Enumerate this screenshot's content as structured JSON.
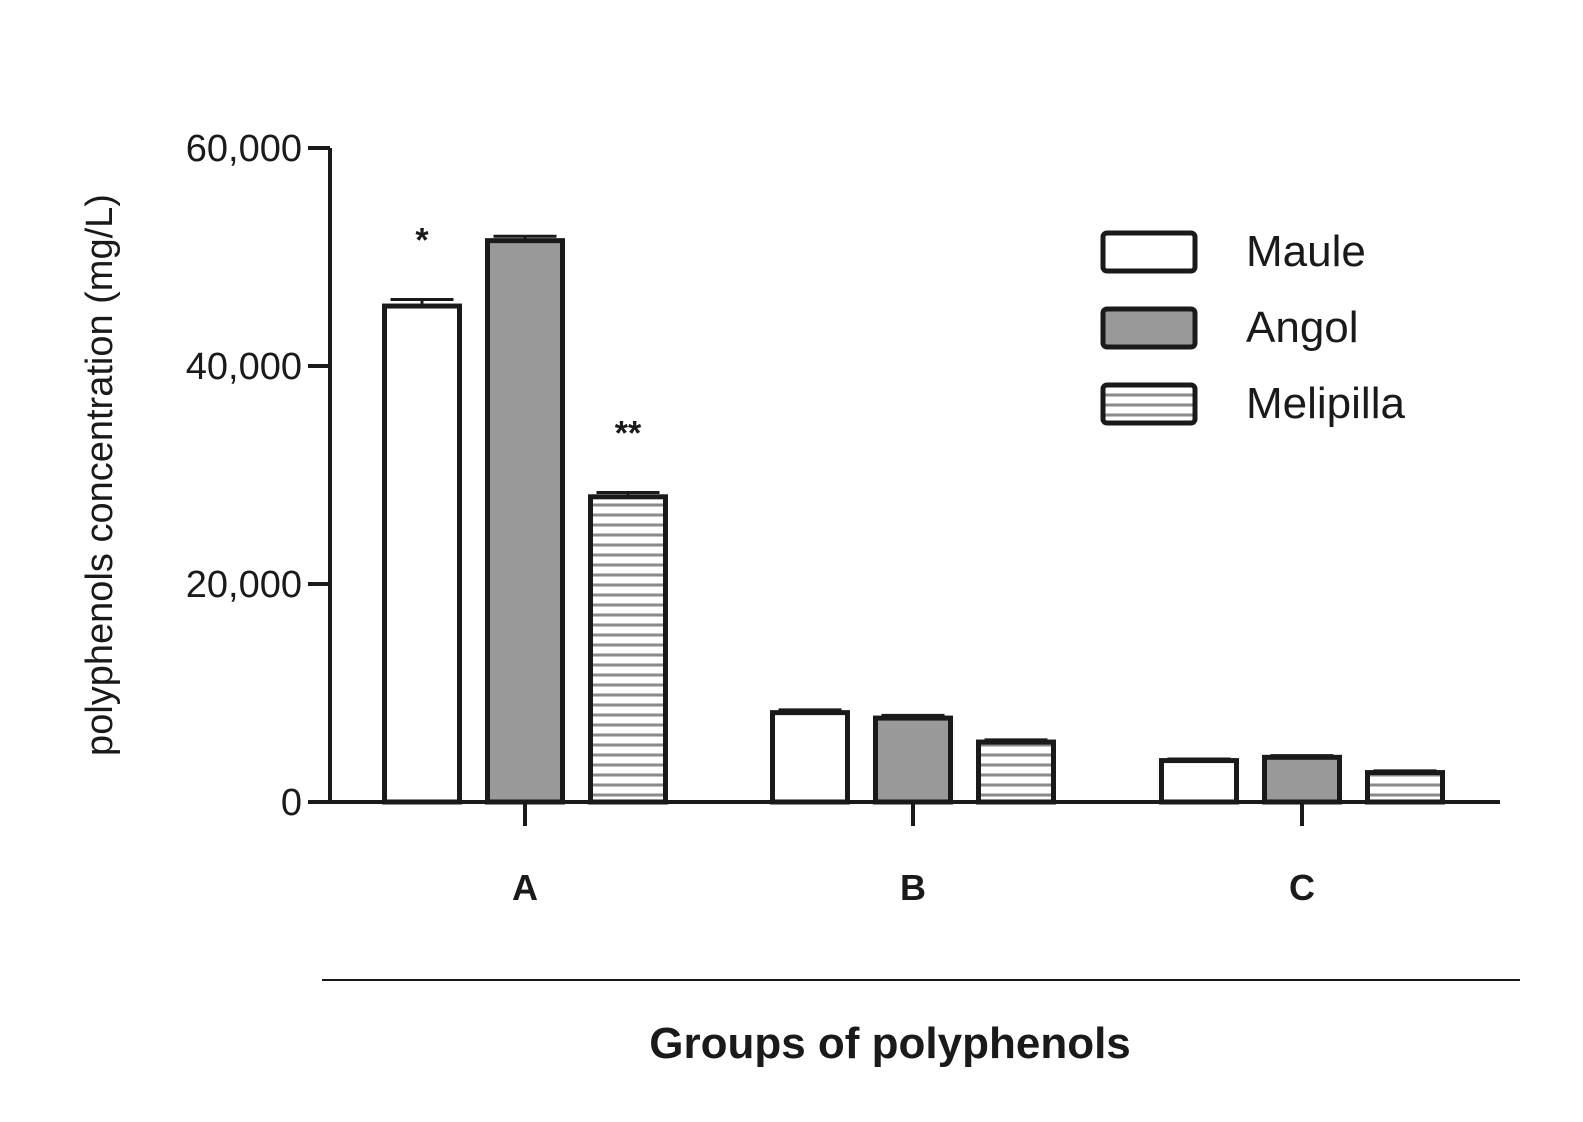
{
  "chart_data": {
    "type": "bar",
    "title": "",
    "xlabel": "Groups of polyphenols",
    "ylabel": "polyphenols concentration (mg/L)",
    "ylim": [
      0,
      60000
    ],
    "yticks": [
      0,
      20000,
      40000,
      60000
    ],
    "ytick_labels": [
      "0",
      "20,000",
      "40,000",
      "60,000"
    ],
    "categories": [
      "A",
      "B",
      "C"
    ],
    "series": [
      {
        "name": "Maule",
        "values": [
          45500,
          8200,
          3800
        ],
        "errors": [
          600,
          250,
          150
        ],
        "fill": "#ffffff",
        "pattern": "none"
      },
      {
        "name": "Angol",
        "values": [
          51500,
          7700,
          4100
        ],
        "errors": [
          400,
          250,
          150
        ],
        "fill": "#999999",
        "pattern": "none"
      },
      {
        "name": "Melipilla",
        "values": [
          28000,
          5500,
          2700
        ],
        "errors": [
          400,
          200,
          150
        ],
        "fill": "#ffffff",
        "pattern": "horizontal-lines"
      }
    ],
    "annotations": [
      {
        "category": "A",
        "series": "Maule",
        "text": "*"
      },
      {
        "category": "A",
        "series": "Melipilla",
        "text": "**"
      }
    ],
    "legend": {
      "position": "top-right"
    },
    "grid": false
  }
}
